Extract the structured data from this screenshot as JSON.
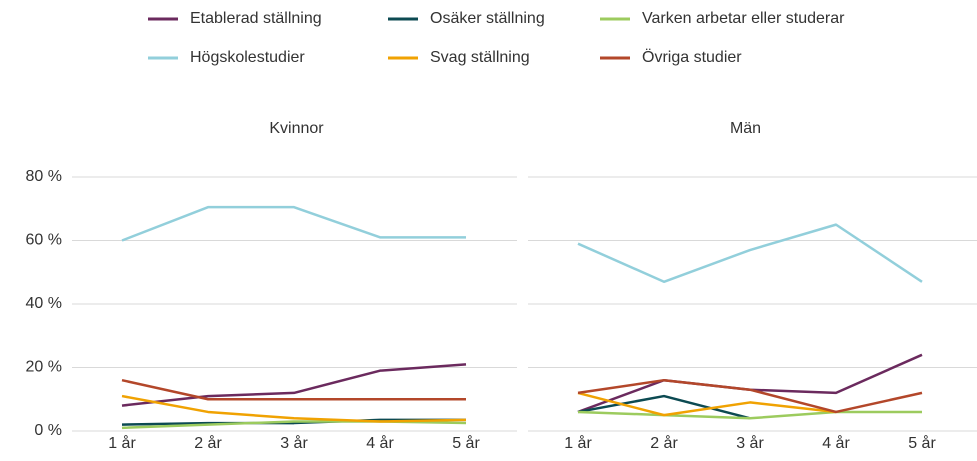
{
  "chart_data": [
    {
      "type": "line",
      "title": "Kvinnor",
      "categories": [
        "1 år",
        "2 år",
        "3 år",
        "4 år",
        "5 år"
      ],
      "ylim": [
        0,
        82
      ],
      "yticks": [
        {
          "value": 0,
          "label": "0 %"
        },
        {
          "value": 20,
          "label": "20 %"
        },
        {
          "value": 40,
          "label": "40 %"
        },
        {
          "value": 60,
          "label": "60 %"
        },
        {
          "value": 80,
          "label": "80 %"
        }
      ],
      "grid": true,
      "series": [
        {
          "name": "Etablerad ställning",
          "color": "#6b2a5e",
          "values": [
            8,
            11,
            12,
            19,
            21
          ]
        },
        {
          "name": "Osäker ställning",
          "color": "#0c4a52",
          "values": [
            2,
            2.5,
            2.5,
            3.5,
            3.5
          ]
        },
        {
          "name": "Varken arbetar eller studerar",
          "color": "#9ccb5e",
          "values": [
            1,
            2,
            3,
            3,
            2.5
          ]
        },
        {
          "name": "Högskolestudier",
          "color": "#92cfdb",
          "values": [
            60,
            70.5,
            70.5,
            61,
            61
          ]
        },
        {
          "name": "Svag ställning",
          "color": "#f0a202",
          "values": [
            11,
            6,
            4,
            3,
            3.5
          ]
        },
        {
          "name": "Övriga studier",
          "color": "#b3472a",
          "values": [
            16,
            10,
            10,
            10,
            10
          ]
        }
      ]
    },
    {
      "type": "line",
      "title": "Män",
      "categories": [
        "1 år",
        "2 år",
        "3 år",
        "4 år",
        "5 år"
      ],
      "ylim": [
        0,
        82
      ],
      "grid": true,
      "series": [
        {
          "color": "#6b2a5e",
          "values": [
            6,
            16,
            13,
            12,
            24
          ]
        },
        {
          "color": "#0c4a52",
          "values": [
            6,
            11,
            4,
            null,
            null
          ]
        },
        {
          "color": "#9ccb5e",
          "values": [
            6,
            5,
            4,
            6,
            6
          ]
        },
        {
          "color": "#92cfdb",
          "values": [
            59,
            47,
            57,
            65,
            47
          ]
        },
        {
          "color": "#f0a202",
          "values": [
            12,
            5,
            9,
            6,
            null
          ]
        },
        {
          "color": "#b3472a",
          "values": [
            12,
            16,
            13,
            6,
            12
          ]
        }
      ]
    }
  ]
}
